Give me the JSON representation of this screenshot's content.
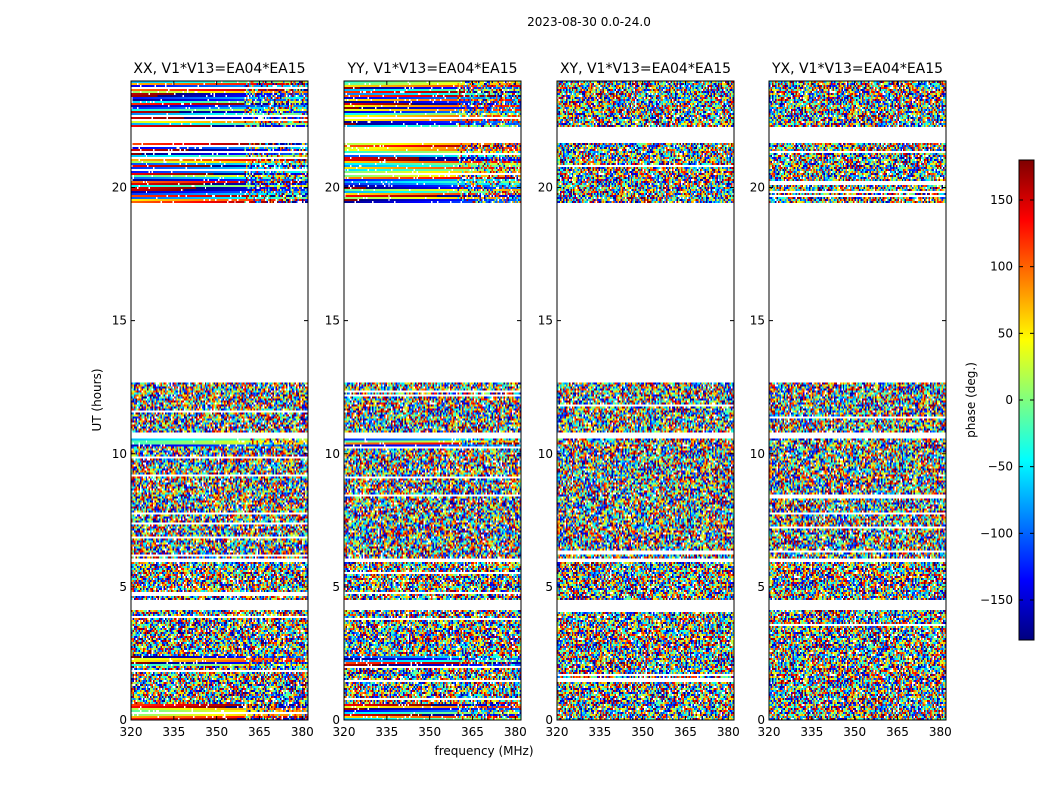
{
  "chart_data": {
    "type": "heatmap",
    "title": "2023-08-30 0.0-24.0",
    "xlabel": "frequency (MHz)",
    "ylabel": "UT (hours)",
    "xlim": [
      320,
      382
    ],
    "ylim": [
      0,
      24
    ],
    "x_ticks": [
      "320",
      "335",
      "350",
      "365",
      "380"
    ],
    "x_tick_values": [
      320,
      335,
      350,
      365,
      380
    ],
    "y_ticks": [
      "0",
      "5",
      "10",
      "15",
      "20"
    ],
    "y_tick_values": [
      0,
      5,
      10,
      15,
      20
    ],
    "colorbar": {
      "label": "phase (deg.)",
      "range": [
        -180,
        180
      ],
      "ticks": [
        "150",
        "100",
        "50",
        "0",
        "−50",
        "−100",
        "−150"
      ],
      "tick_values": [
        150,
        100,
        50,
        0,
        -50,
        -100,
        -150
      ],
      "colormap": "jet"
    },
    "panels": [
      {
        "title": "XX, V1*V13=EA04*EA15",
        "mode": "parallel"
      },
      {
        "title": "YY, V1*V13=EA04*EA15",
        "mode": "parallel"
      },
      {
        "title": "XY, V1*V13=EA04*EA15",
        "mode": "noise"
      },
      {
        "title": "YX, V1*V13=EA04*EA15",
        "mode": "noise"
      }
    ],
    "data_ranges_ut": [
      [
        0.0,
        4.1
      ],
      [
        4.5,
        5.9
      ],
      [
        6.1,
        10.6
      ],
      [
        10.8,
        12.7
      ],
      [
        19.4,
        21.7
      ],
      [
        22.3,
        24.0
      ]
    ],
    "flagged_ranges_ut": [
      [
        4.1,
        4.5
      ],
      [
        12.7,
        19.4
      ],
      [
        21.7,
        22.3
      ]
    ]
  }
}
